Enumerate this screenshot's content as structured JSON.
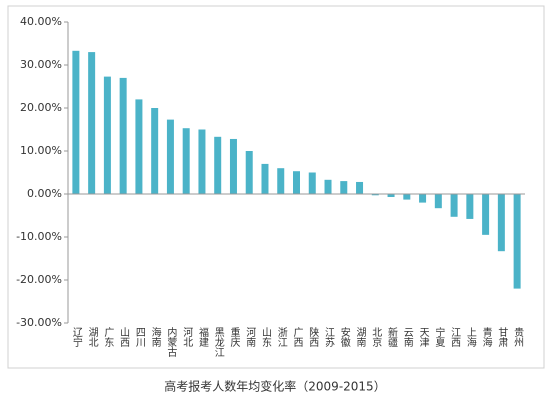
{
  "chart_data": {
    "type": "bar",
    "title": "高考报考人数年均变化率（2009-2015）",
    "categories": [
      "辽宁",
      "湖北",
      "广东",
      "山西",
      "四川",
      "海南",
      "内蒙古",
      "河北",
      "福建",
      "黑龙江",
      "重庆",
      "河南",
      "山东",
      "浙江",
      "广西",
      "陕西",
      "江苏",
      "安徽",
      "湖南",
      "北京",
      "新疆",
      "云南",
      "天津",
      "宁夏",
      "江西",
      "上海",
      "青海",
      "甘肃",
      "贵州"
    ],
    "values": [
      33.3,
      33.0,
      27.3,
      27.0,
      22.0,
      20.0,
      17.3,
      15.3,
      15.0,
      13.3,
      12.8,
      10.0,
      7.0,
      6.0,
      5.3,
      5.0,
      3.3,
      3.0,
      2.8,
      -0.3,
      -0.7,
      -1.3,
      -2.0,
      -3.3,
      -5.3,
      -5.8,
      -9.5,
      -13.3,
      -22.0
    ],
    "color": "#4bb3c8",
    "ylim": [
      -30,
      40
    ],
    "yticks": [
      {
        "value": -30,
        "label": "-30.00%"
      },
      {
        "value": -20,
        "label": "-20.00%"
      },
      {
        "value": -10,
        "label": "-10.00%"
      },
      {
        "value": 0,
        "label": "0.00%"
      },
      {
        "value": 10,
        "label": "10.00%"
      },
      {
        "value": 20,
        "label": "20.00%"
      },
      {
        "value": 30,
        "label": "30.00%"
      },
      {
        "value": 40,
        "label": "40.00%"
      }
    ]
  }
}
